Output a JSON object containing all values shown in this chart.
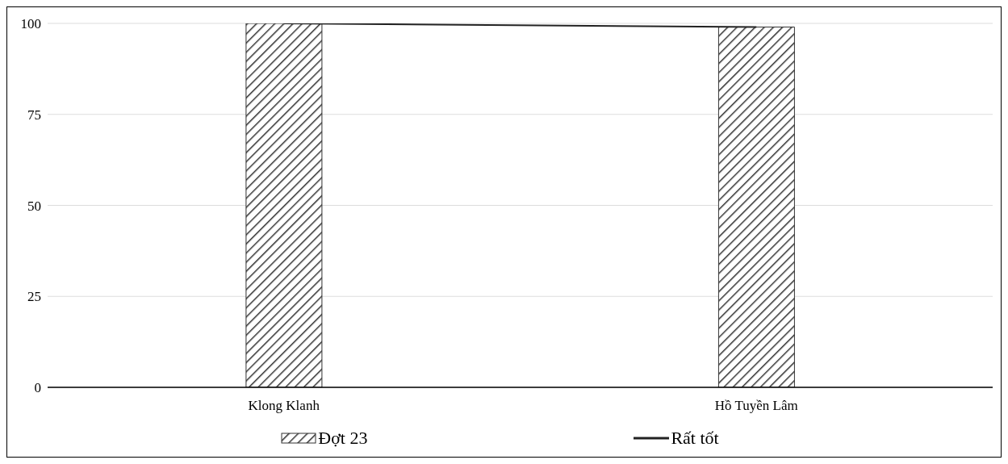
{
  "chart_data": {
    "type": "bar",
    "categories": [
      "Klong Klanh",
      "Hồ Tuyền Lâm"
    ],
    "series": [
      {
        "name": "Đợt 23",
        "color": "#333333",
        "values": [
          100,
          99
        ]
      },
      {
        "name": "Rất tốt",
        "type": "line",
        "color": "#222222",
        "values": [
          100,
          99
        ]
      }
    ],
    "ylim": [
      0,
      100
    ],
    "yticks": [
      0,
      25,
      50,
      75,
      100
    ],
    "grid": "y",
    "legend": "bottom",
    "marker": "none"
  }
}
